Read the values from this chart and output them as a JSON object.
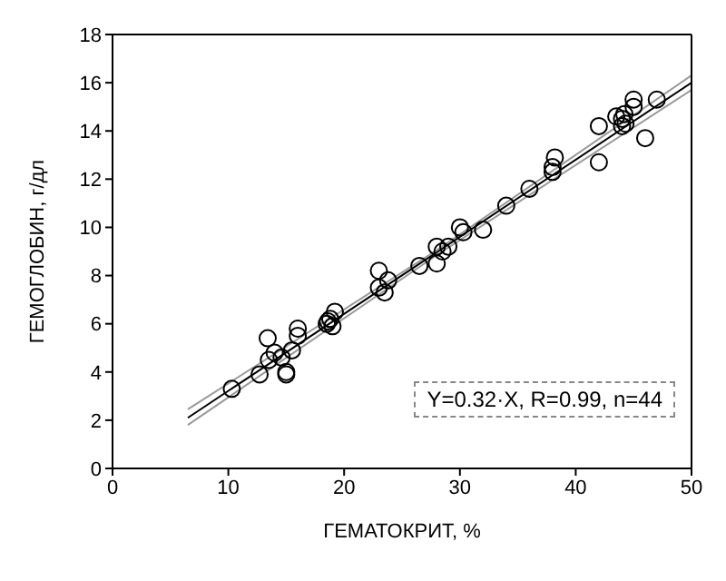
{
  "chart_data": {
    "type": "scatter",
    "xlabel": "ГЕМАТОКРИТ, %",
    "ylabel": "ГЕМОГЛОБИН, г/дл",
    "xlim": [
      0,
      50
    ],
    "xticks": [
      0,
      10,
      20,
      30,
      40,
      50
    ],
    "ylim": [
      0,
      18
    ],
    "yticks": [
      0,
      2,
      4,
      6,
      8,
      10,
      12,
      14,
      16,
      18
    ],
    "grid": false,
    "legend": false,
    "marker": "circle",
    "annotations": [
      "Y=0.32·X, R=0.99, n=44"
    ],
    "series": [
      {
        "color": "#000000",
        "x": [
          10.3,
          12.7,
          13.4,
          13.5,
          14,
          14.6,
          15,
          15,
          15.5,
          16,
          16,
          18.5,
          18.6,
          18.8,
          19,
          19.2,
          23,
          23,
          23.5,
          23.8,
          26.5,
          28,
          28,
          28.5,
          29,
          30,
          30.3,
          32,
          34,
          36,
          38,
          38,
          38.2,
          42,
          42,
          43.5,
          44,
          44,
          44.2,
          44.3,
          45,
          45,
          46,
          47
        ],
        "values": [
          3.3,
          3.9,
          5.4,
          4.5,
          4.8,
          4.6,
          4.0,
          3.9,
          4.9,
          5.8,
          5.5,
          6.0,
          6.1,
          6.2,
          5.9,
          6.5,
          8.2,
          7.5,
          7.3,
          7.8,
          8.4,
          9.2,
          8.5,
          9.0,
          9.2,
          10.0,
          9.8,
          9.9,
          10.9,
          11.6,
          12.3,
          12.5,
          12.9,
          12.7,
          14.2,
          14.6,
          14.5,
          14.2,
          14.7,
          14.3,
          15.0,
          15.3,
          13.7,
          15.3
        ]
      },
      {
        "type": "line",
        "color": "#000000",
        "marker": "none",
        "x": [
          6.5,
          50
        ],
        "values": [
          2.1,
          16.0
        ]
      },
      {
        "type": "line",
        "color": "#999999",
        "marker": "none",
        "x": [
          6.5,
          28,
          50
        ],
        "values": [
          2.45,
          9.05,
          16.3
        ]
      },
      {
        "type": "line",
        "color": "#999999",
        "marker": "none",
        "x": [
          6.5,
          28,
          50
        ],
        "values": [
          1.8,
          8.85,
          15.7
        ]
      }
    ]
  }
}
